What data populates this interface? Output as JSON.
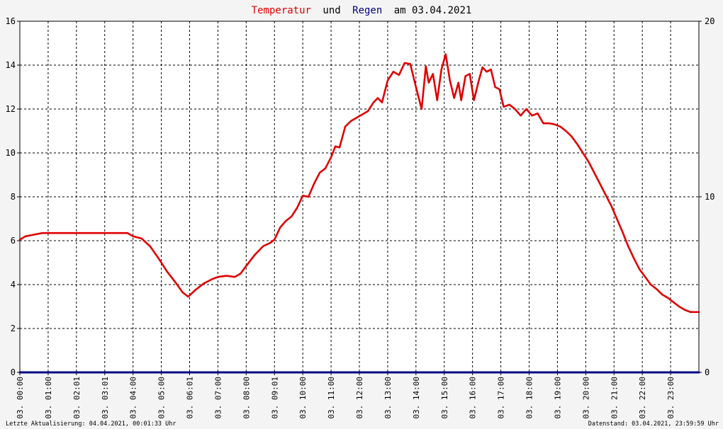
{
  "chart_data": {
    "type": "line",
    "title": {
      "part1": "Temperatur",
      "part2": "und",
      "part3": "Regen",
      "part4": "am 03.04.2021"
    },
    "colors": {
      "temperature": "#e00000",
      "rain": "#000080",
      "title_text": "#000000",
      "background": "#f4f4f4",
      "plot_background": "#ffffff",
      "grid": "#000000"
    },
    "grid": true,
    "y_left": {
      "min": 0,
      "max": 16,
      "ticks": [
        0,
        2,
        4,
        6,
        8,
        10,
        12,
        14,
        16
      ]
    },
    "y_right": {
      "min": 0,
      "max": 20,
      "ticks": [
        0,
        10,
        20
      ]
    },
    "x_range": [
      0,
      24
    ],
    "x_ticks": [
      {
        "x": 0.0,
        "date": "03.",
        "time": "00:00"
      },
      {
        "x": 1.0,
        "date": "03.",
        "time": "01:00"
      },
      {
        "x": 2.0,
        "date": "03.",
        "time": "02:01"
      },
      {
        "x": 3.0,
        "date": "03.",
        "time": "03:01"
      },
      {
        "x": 4.0,
        "date": "03.",
        "time": "04:00"
      },
      {
        "x": 5.0,
        "date": "03.",
        "time": "05:00"
      },
      {
        "x": 6.0,
        "date": "03.",
        "time": "06:01"
      },
      {
        "x": 7.0,
        "date": "03.",
        "time": "07:00"
      },
      {
        "x": 8.0,
        "date": "03.",
        "time": "08:00"
      },
      {
        "x": 9.0,
        "date": "03.",
        "time": "09:01"
      },
      {
        "x": 10.0,
        "date": "03.",
        "time": "10:00"
      },
      {
        "x": 11.0,
        "date": "03.",
        "time": "11:00"
      },
      {
        "x": 12.0,
        "date": "03.",
        "time": "12:00"
      },
      {
        "x": 13.0,
        "date": "03.",
        "time": "13:00"
      },
      {
        "x": 14.0,
        "date": "03.",
        "time": "14:00"
      },
      {
        "x": 15.0,
        "date": "03.",
        "time": "15:00"
      },
      {
        "x": 16.0,
        "date": "03.",
        "time": "16:00"
      },
      {
        "x": 17.0,
        "date": "03.",
        "time": "17:00"
      },
      {
        "x": 18.0,
        "date": "03.",
        "time": "18:00"
      },
      {
        "x": 19.0,
        "date": "03.",
        "time": "19:00"
      },
      {
        "x": 20.0,
        "date": "03.",
        "time": "20:00"
      },
      {
        "x": 21.0,
        "date": "03.",
        "time": "21:00"
      },
      {
        "x": 22.0,
        "date": "03.",
        "time": "22:00"
      },
      {
        "x": 23.0,
        "date": "03.",
        "time": "23:00"
      }
    ],
    "series": [
      {
        "axis": "left",
        "x": [
          0.0,
          0.2,
          0.4,
          0.6,
          0.8,
          1.0,
          1.5,
          2.0,
          2.5,
          3.0,
          3.5,
          3.8,
          4.0,
          4.3,
          4.6,
          4.9,
          5.2,
          5.5,
          5.75,
          5.95,
          6.2,
          6.5,
          6.8,
          7.0,
          7.3,
          7.6,
          7.8,
          8.0,
          8.3,
          8.6,
          8.85,
          9.0,
          9.2,
          9.4,
          9.6,
          9.8,
          10.0,
          10.2,
          10.4,
          10.6,
          10.8,
          11.0,
          11.15,
          11.3,
          11.5,
          11.7,
          11.9,
          12.1,
          12.3,
          12.5,
          12.65,
          12.8,
          13.0,
          13.2,
          13.4,
          13.6,
          13.8,
          14.0,
          14.2,
          14.35,
          14.45,
          14.6,
          14.75,
          14.9,
          15.05,
          15.2,
          15.35,
          15.5,
          15.6,
          15.75,
          15.9,
          16.05,
          16.2,
          16.35,
          16.5,
          16.65,
          16.8,
          16.95,
          17.1,
          17.3,
          17.5,
          17.7,
          17.9,
          18.1,
          18.3,
          18.5,
          18.7,
          18.9,
          19.1,
          19.3,
          19.5,
          19.7,
          19.9,
          20.1,
          20.3,
          20.5,
          20.7,
          20.9,
          21.1,
          21.3,
          21.5,
          21.7,
          21.9,
          22.1,
          22.3,
          22.5,
          22.7,
          22.9,
          23.1,
          23.3,
          23.5,
          23.7,
          23.9,
          24.0
        ],
        "values": [
          6.05,
          6.2,
          6.25,
          6.3,
          6.35,
          6.35,
          6.35,
          6.35,
          6.35,
          6.35,
          6.35,
          6.35,
          6.2,
          6.1,
          5.75,
          5.2,
          4.6,
          4.1,
          3.65,
          3.45,
          3.75,
          4.05,
          4.25,
          4.35,
          4.4,
          4.35,
          4.5,
          4.85,
          5.35,
          5.75,
          5.9,
          6.05,
          6.6,
          6.9,
          7.1,
          7.5,
          8.05,
          8.0,
          8.6,
          9.1,
          9.3,
          9.8,
          10.3,
          10.25,
          11.2,
          11.45,
          11.6,
          11.75,
          11.9,
          12.3,
          12.5,
          12.3,
          13.3,
          13.7,
          13.55,
          14.1,
          14.05,
          13.0,
          12.0,
          13.95,
          13.2,
          13.6,
          12.4,
          13.8,
          14.5,
          13.3,
          12.5,
          13.2,
          12.4,
          13.5,
          13.6,
          12.4,
          13.2,
          13.9,
          13.7,
          13.8,
          13.0,
          12.9,
          12.1,
          12.2,
          12.0,
          11.7,
          12.0,
          11.7,
          11.8,
          11.35,
          11.35,
          11.3,
          11.2,
          11.0,
          10.75,
          10.4,
          10.0,
          9.6,
          9.1,
          8.6,
          8.1,
          7.6,
          7.0,
          6.4,
          5.75,
          5.2,
          4.7,
          4.35,
          4.0,
          3.8,
          3.55,
          3.4,
          3.2,
          3.0,
          2.85,
          2.75,
          2.75,
          2.75
        ]
      },
      {
        "axis": "right",
        "x": [
          0,
          24
        ],
        "values": [
          0,
          0
        ]
      }
    ]
  },
  "footer": {
    "left": "Letzte Aktualisierung: 04.04.2021, 00:01:33 Uhr",
    "right": "Datenstand: 03.04.2021, 23:59:59 Uhr"
  }
}
